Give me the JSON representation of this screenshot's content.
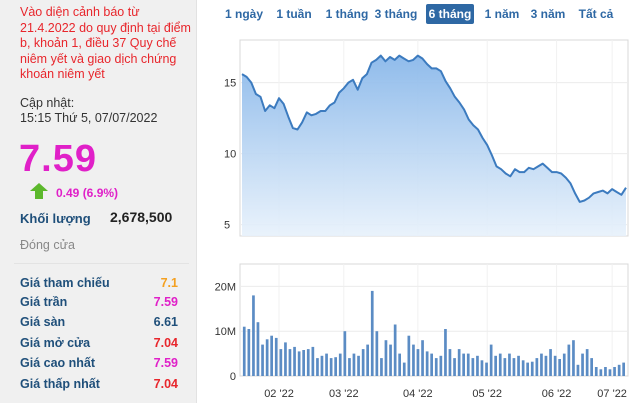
{
  "stock": {
    "warning": "Vào diện cảnh báo từ 21.4.2022 do quy định tại điểm b, khoản 1, điều 37 Quy chế niêm yết và giao dịch chứng khoán niêm yết",
    "updated_label": "Cập nhật:",
    "updated_time": "15:15 Thứ 5, 07/07/2022",
    "price": "7.59",
    "change": "0.49 (6.9%)",
    "change_direction": "up",
    "volume_label": "Khối lượng",
    "volume": "2,678,500",
    "status": "Đóng cửa"
  },
  "details": [
    {
      "label": "Giá tham chiếu",
      "value": "7.1",
      "color": "#f4a020"
    },
    {
      "label": "Giá trần",
      "value": "7.59",
      "color": "#e020c8"
    },
    {
      "label": "Giá sàn",
      "value": "6.61",
      "color": "#1f4f7a"
    },
    {
      "label": "Giá mở cửa",
      "value": "7.04",
      "color": "#e8262c"
    },
    {
      "label": "Giá cao nhất",
      "value": "7.59",
      "color": "#e020c8"
    },
    {
      "label": "Giá thấp nhất",
      "value": "7.04",
      "color": "#e8262c"
    }
  ],
  "tabs": [
    {
      "label": "1 ngày",
      "active": false
    },
    {
      "label": "1 tuần",
      "active": false
    },
    {
      "label": "1 tháng",
      "active": false
    },
    {
      "label": "3 tháng",
      "active": false
    },
    {
      "label": "6 tháng",
      "active": true
    },
    {
      "label": "1 năm",
      "active": false
    },
    {
      "label": "3 năm",
      "active": false
    },
    {
      "label": "Tất cả",
      "active": false
    }
  ],
  "colors": {
    "accent": "#2e68a4",
    "line": "#3c7bbf",
    "volume_bar": "#5b8cc4",
    "up_arrow": "#5cb82c"
  },
  "chart_data": [
    {
      "type": "area",
      "yticks": [
        5,
        10,
        15
      ],
      "ylim": [
        4.2,
        18
      ],
      "x_tick_labels": [
        "02 '22",
        "03 '22",
        "04 '22",
        "05 '22",
        "06 '22",
        "07 '22"
      ],
      "values": [
        15.6,
        15.4,
        15.0,
        14.2,
        14.0,
        13.0,
        13.4,
        13.2,
        13.9,
        13.5,
        12.6,
        11.8,
        11.7,
        12.2,
        12.9,
        12.7,
        12.8,
        13.0,
        13.0,
        13.4,
        13.6,
        14.3,
        14.6,
        15.0,
        15.2,
        14.5,
        15.3,
        15.6,
        16.4,
        16.6,
        16.9,
        16.5,
        16.8,
        16.6,
        16.9,
        16.7,
        16.5,
        16.6,
        16.9,
        16.7,
        16.3,
        16.0,
        16.0,
        15.8,
        15.1,
        14.6,
        14.0,
        13.6,
        13.1,
        12.4,
        12.0,
        11.7,
        11.1,
        10.6,
        9.9,
        9.1,
        8.9,
        8.6,
        8.4,
        8.9,
        8.7,
        8.7,
        9.0,
        8.9,
        9.1,
        9.3,
        9.0,
        8.7,
        8.7,
        8.6,
        8.3,
        7.9,
        7.2,
        6.6,
        6.7,
        6.9,
        7.2,
        7.3,
        7.4,
        7.2,
        7.5,
        7.3,
        7.1,
        7.6
      ]
    },
    {
      "type": "bar",
      "yticks_labels": [
        "0",
        "10M",
        "20M"
      ],
      "ylim": [
        0,
        25
      ],
      "values": [
        11,
        10.5,
        18,
        12,
        7,
        8.2,
        9,
        8.5,
        6,
        7.5,
        6,
        6.5,
        5.5,
        5.8,
        6,
        6.5,
        4,
        4.5,
        5,
        4,
        4.2,
        5,
        10,
        4,
        5,
        4.5,
        6,
        7,
        19,
        10,
        4,
        8,
        7,
        11.5,
        5,
        3,
        9,
        7,
        6,
        8,
        5.5,
        5,
        4,
        4.5,
        10.5,
        6,
        4,
        6,
        5,
        5,
        4,
        4.5,
        3.5,
        3,
        7,
        4.5,
        5,
        4,
        5,
        4,
        4.5,
        3.5,
        3,
        3.2,
        4,
        5,
        4.5,
        6,
        4.5,
        3.8,
        5,
        7,
        8,
        2.5,
        5,
        6,
        4,
        2,
        1.5,
        2,
        1.5,
        2,
        2.5,
        3
      ]
    }
  ]
}
